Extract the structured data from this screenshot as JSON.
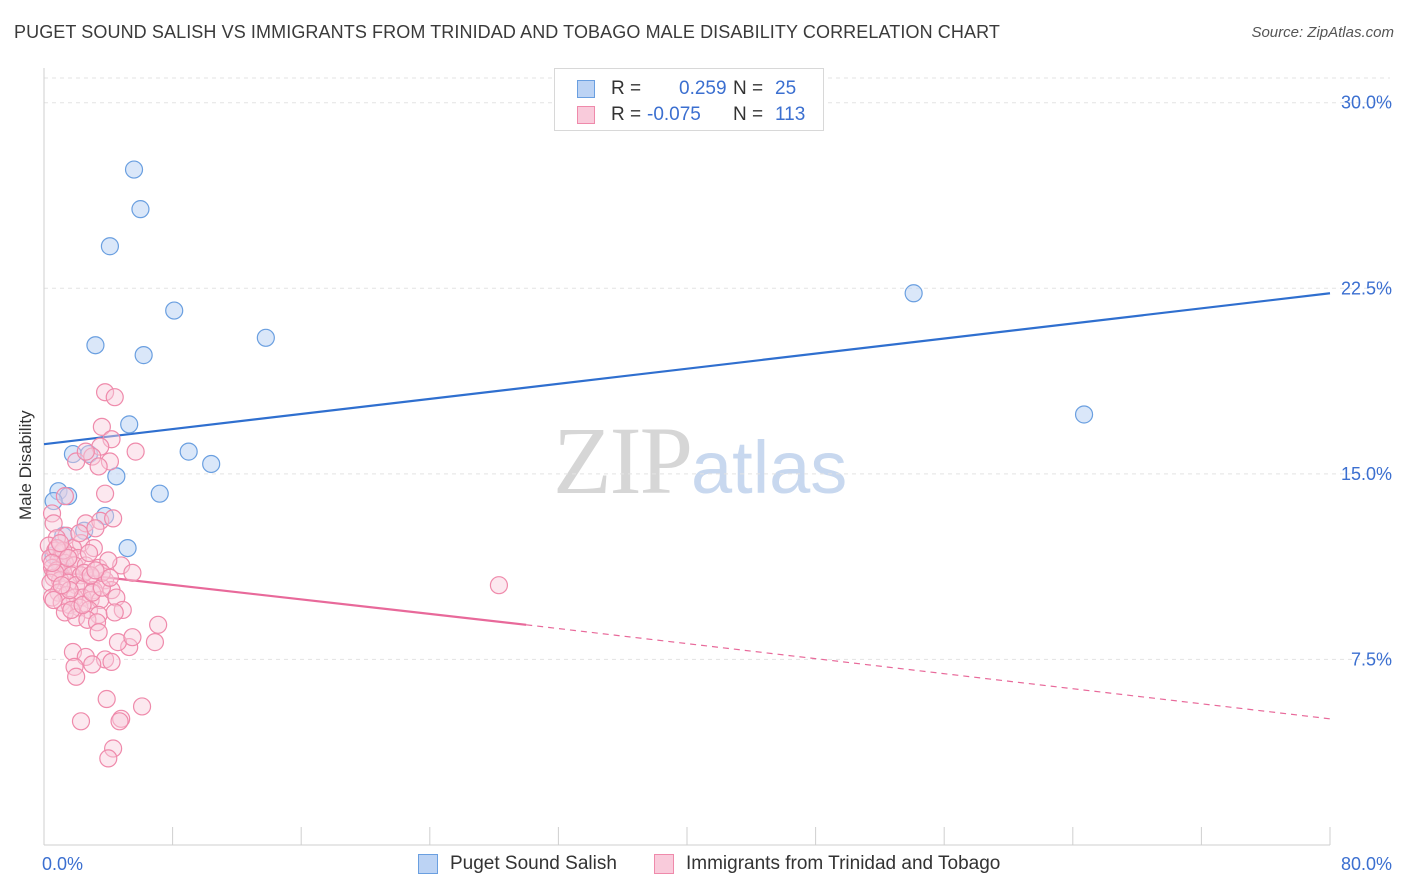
{
  "title": "PUGET SOUND SALISH VS IMMIGRANTS FROM TRINIDAD AND TOBAGO MALE DISABILITY CORRELATION CHART",
  "source": "Source: ZipAtlas.com",
  "watermark": {
    "zip": "ZIP",
    "atlas": "atlas"
  },
  "legend": {
    "rows": [
      {
        "r_label": "R =",
        "r_value": "0.259",
        "n_label": "N =",
        "n_value": "25",
        "color": "#6a9fe0",
        "fill": "#bcd3f4"
      },
      {
        "r_label": "R =",
        "r_value": "-0.075",
        "n_label": "N =",
        "n_value": "113",
        "color": "#ef8aab",
        "fill": "#f9cbdb"
      }
    ]
  },
  "colors": {
    "blue": "#2f6fcf",
    "pink": "#e8699a",
    "grid": "#e3e3e3",
    "axis_text": "#3b6fd0"
  },
  "chart_data": {
    "type": "scatter",
    "title": "PUGET SOUND SALISH VS IMMIGRANTS FROM TRINIDAD AND TOBAGO MALE DISABILITY CORRELATION CHART",
    "xlabel": "",
    "ylabel": "Male Disability",
    "xlim": [
      0,
      80
    ],
    "ylim": [
      0,
      31
    ],
    "x_tick_labels": [
      "0.0%",
      "80.0%"
    ],
    "y_ticks": [
      7.5,
      15.0,
      22.5,
      30.0
    ],
    "y_tick_labels": [
      "7.5%",
      "15.0%",
      "22.5%",
      "30.0%"
    ],
    "grid": "horizontal dashed",
    "legend_position": "top-center",
    "series": [
      {
        "name": "Puget Sound Salish",
        "color": "#6a9fe0",
        "points": [
          [
            5.6,
            27.3
          ],
          [
            6.0,
            25.7
          ],
          [
            4.1,
            24.2
          ],
          [
            8.1,
            21.6
          ],
          [
            3.2,
            20.2
          ],
          [
            6.2,
            19.8
          ],
          [
            13.8,
            20.5
          ],
          [
            5.3,
            17.0
          ],
          [
            9.0,
            15.9
          ],
          [
            10.4,
            15.4
          ],
          [
            1.8,
            15.8
          ],
          [
            2.8,
            15.8
          ],
          [
            4.5,
            14.9
          ],
          [
            0.9,
            14.3
          ],
          [
            1.5,
            14.1
          ],
          [
            0.6,
            13.9
          ],
          [
            7.2,
            14.2
          ],
          [
            3.8,
            13.3
          ],
          [
            2.5,
            12.7
          ],
          [
            1.2,
            12.5
          ],
          [
            5.2,
            12.0
          ],
          [
            0.6,
            11.7
          ],
          [
            1.0,
            11.3
          ],
          [
            54.1,
            22.3
          ],
          [
            64.7,
            17.4
          ]
        ],
        "trend": {
          "x": [
            0,
            80
          ],
          "y": [
            16.2,
            22.3
          ]
        }
      },
      {
        "name": "Immigrants from Trinidad and Tobago",
        "color": "#ef8aab",
        "points": [
          [
            3.8,
            18.3
          ],
          [
            4.4,
            18.1
          ],
          [
            3.6,
            16.9
          ],
          [
            4.2,
            16.4
          ],
          [
            3.5,
            16.1
          ],
          [
            3.0,
            15.7
          ],
          [
            5.7,
            15.9
          ],
          [
            4.1,
            15.5
          ],
          [
            2.0,
            15.5
          ],
          [
            2.6,
            15.9
          ],
          [
            3.4,
            15.3
          ],
          [
            0.5,
            13.4
          ],
          [
            2.6,
            13.0
          ],
          [
            3.5,
            13.1
          ],
          [
            3.8,
            14.2
          ],
          [
            1.3,
            14.1
          ],
          [
            0.6,
            13.0
          ],
          [
            1.4,
            12.5
          ],
          [
            2.3,
            12.2
          ],
          [
            0.8,
            12.4
          ],
          [
            3.1,
            12.0
          ],
          [
            1.8,
            12.0
          ],
          [
            0.3,
            12.1
          ],
          [
            0.7,
            11.9
          ],
          [
            1.1,
            11.8
          ],
          [
            1.6,
            11.7
          ],
          [
            2.1,
            11.6
          ],
          [
            0.4,
            11.6
          ],
          [
            0.9,
            11.5
          ],
          [
            1.3,
            11.4
          ],
          [
            1.9,
            11.3
          ],
          [
            2.6,
            11.3
          ],
          [
            3.4,
            11.2
          ],
          [
            0.5,
            11.2
          ],
          [
            0.8,
            11.1
          ],
          [
            1.2,
            11.0
          ],
          [
            1.7,
            10.9
          ],
          [
            2.3,
            10.9
          ],
          [
            3.0,
            10.8
          ],
          [
            3.8,
            10.7
          ],
          [
            0.6,
            10.8
          ],
          [
            1.0,
            10.7
          ],
          [
            1.5,
            10.6
          ],
          [
            2.0,
            10.5
          ],
          [
            2.5,
            10.4
          ],
          [
            3.1,
            10.3
          ],
          [
            0.4,
            10.6
          ],
          [
            0.9,
            10.2
          ],
          [
            1.4,
            10.1
          ],
          [
            1.9,
            10.0
          ],
          [
            2.4,
            10.0
          ],
          [
            2.9,
            9.9
          ],
          [
            3.5,
            9.9
          ],
          [
            4.2,
            10.3
          ],
          [
            0.5,
            10.0
          ],
          [
            1.1,
            9.8
          ],
          [
            1.6,
            9.7
          ],
          [
            2.2,
            9.6
          ],
          [
            2.8,
            9.5
          ],
          [
            3.4,
            9.3
          ],
          [
            1.3,
            9.4
          ],
          [
            2.0,
            9.2
          ],
          [
            2.7,
            9.1
          ],
          [
            3.3,
            9.0
          ],
          [
            1.7,
            9.5
          ],
          [
            2.4,
            9.7
          ],
          [
            3.0,
            10.2
          ],
          [
            3.6,
            10.4
          ],
          [
            4.5,
            10.0
          ],
          [
            4.9,
            9.5
          ],
          [
            0.7,
            11.0
          ],
          [
            1.2,
            11.9
          ],
          [
            2.2,
            12.6
          ],
          [
            3.2,
            12.8
          ],
          [
            4.3,
            13.2
          ],
          [
            4.8,
            11.3
          ],
          [
            5.5,
            11.0
          ],
          [
            0.8,
            12.0
          ],
          [
            1.5,
            11.6
          ],
          [
            4.0,
            11.5
          ],
          [
            2.8,
            11.8
          ],
          [
            1.0,
            12.2
          ],
          [
            0.5,
            11.4
          ],
          [
            2.5,
            11.0
          ],
          [
            3.6,
            11.0
          ],
          [
            4.1,
            10.8
          ],
          [
            7.1,
            8.9
          ],
          [
            6.9,
            8.2
          ],
          [
            5.3,
            8.0
          ],
          [
            4.6,
            8.2
          ],
          [
            3.4,
            8.6
          ],
          [
            1.8,
            7.8
          ],
          [
            2.6,
            7.6
          ],
          [
            3.8,
            7.5
          ],
          [
            4.2,
            7.4
          ],
          [
            5.5,
            8.4
          ],
          [
            1.9,
            7.2
          ],
          [
            3.0,
            7.3
          ],
          [
            2.0,
            6.8
          ],
          [
            3.9,
            5.9
          ],
          [
            6.1,
            5.6
          ],
          [
            4.8,
            5.1
          ],
          [
            4.7,
            5.0
          ],
          [
            2.3,
            5.0
          ],
          [
            4.3,
            3.9
          ],
          [
            4.0,
            3.5
          ],
          [
            28.3,
            10.5
          ],
          [
            1.6,
            10.3
          ],
          [
            2.9,
            10.9
          ],
          [
            0.6,
            9.9
          ],
          [
            3.2,
            11.1
          ],
          [
            4.4,
            9.4
          ],
          [
            1.1,
            10.5
          ]
        ],
        "trend": {
          "x": [
            0,
            30
          ],
          "y": [
            11.1,
            8.9
          ]
        },
        "trend_dashed": {
          "x": [
            30,
            80
          ],
          "y": [
            8.9,
            5.1
          ]
        }
      }
    ]
  }
}
